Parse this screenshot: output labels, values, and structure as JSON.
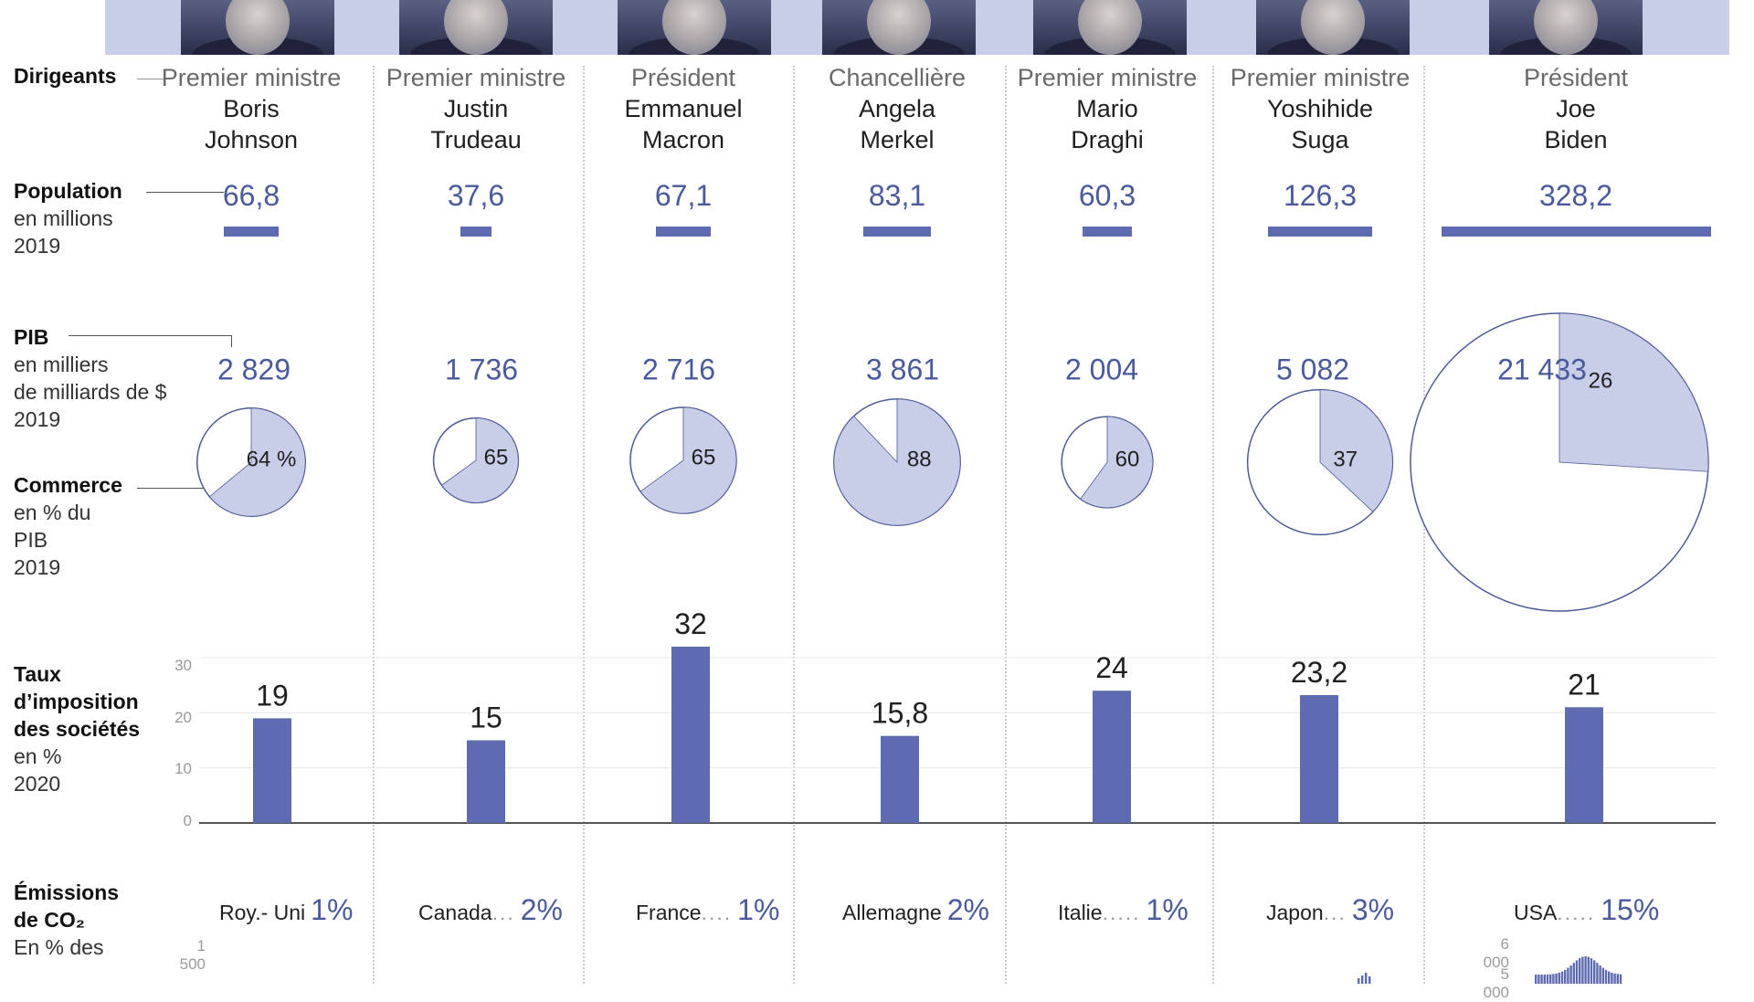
{
  "row_labels": {
    "leaders": "Dirigeants",
    "population": {
      "title": "Population",
      "lines": [
        "en millions",
        "2019"
      ]
    },
    "gdp": {
      "title": "PIB",
      "lines": [
        "en milliers",
        "de milliards de $",
        "2019"
      ]
    },
    "trade": {
      "title": "Commerce",
      "lines": [
        "en % du",
        "PIB",
        "2019"
      ]
    },
    "tax": {
      "title_lines": [
        "Taux",
        "d’imposition",
        "des sociétés"
      ],
      "lines": [
        "en %",
        "2020"
      ]
    },
    "co2": {
      "title_lines": [
        "Émissions",
        "de CO₂"
      ],
      "lines": [
        "En % des"
      ]
    }
  },
  "leaders": [
    {
      "role": "Premier ministre",
      "name": [
        "Boris",
        "Johnson"
      ]
    },
    {
      "role": "Premier ministre",
      "name": [
        "Justin",
        "Trudeau"
      ]
    },
    {
      "role": "Président",
      "name": [
        "Emmanuel",
        "Macron"
      ]
    },
    {
      "role": "Chancellière",
      "name": [
        "Angela",
        "Merkel"
      ]
    },
    {
      "role": "Premier ministre",
      "name": [
        "Mario",
        "Draghi"
      ]
    },
    {
      "role": "Premier ministre",
      "name": [
        "Yoshihide",
        "Suga"
      ]
    },
    {
      "role": "Président",
      "name": [
        "Joe",
        "Biden"
      ]
    }
  ],
  "tax_ticks": [
    "30",
    "20",
    "10",
    "0"
  ],
  "co2_ticks": {
    "left": "1 500",
    "usa_top": "6 000",
    "usa_mid": "5 000"
  },
  "colors": {
    "accent": "#5e6bb0",
    "pie_fill": "#c8cde8",
    "value_text": "#4a5a9c"
  },
  "chart_data": [
    {
      "type": "bar",
      "title": "Population",
      "ylabel": "en millions",
      "categories": [
        "Roy.- Uni",
        "Canada",
        "France",
        "Allemagne",
        "Italie",
        "Japon",
        "USA"
      ],
      "values": [
        66.8,
        37.6,
        67.1,
        83.1,
        60.3,
        126.3,
        328.2
      ],
      "value_labels": [
        "66,8",
        "37,6",
        "67,1",
        "83,1",
        "60,3",
        "126,3",
        "328,2"
      ]
    },
    {
      "type": "pie",
      "title": "PIB",
      "categories": [
        "Roy.- Uni",
        "Canada",
        "France",
        "Allemagne",
        "Italie",
        "Japon",
        "USA"
      ],
      "gdp": [
        2829,
        1736,
        2716,
        3861,
        2004,
        5082,
        21433
      ],
      "gdp_labels": [
        "2 829",
        "1 736",
        "2 716",
        "3 861",
        "2 004",
        "5 082",
        "21 433"
      ],
      "trade_pct": [
        64,
        65,
        65,
        88,
        60,
        37,
        26
      ],
      "trade_labels": [
        "64 %",
        "65",
        "65",
        "88",
        "60",
        "37",
        "26"
      ]
    },
    {
      "type": "bar",
      "title": "Taux d’imposition des sociétés",
      "ylabel": "en %",
      "categories": [
        "Roy.- Uni",
        "Canada",
        "France",
        "Allemagne",
        "Italie",
        "Japon",
        "USA"
      ],
      "values": [
        19,
        15,
        32,
        15.8,
        24,
        23.2,
        21
      ],
      "value_labels": [
        "19",
        "15",
        "32",
        "15,8",
        "24",
        "23,2",
        "21"
      ],
      "ylim": [
        0,
        30
      ]
    },
    {
      "type": "table",
      "title": "Émissions de CO₂",
      "categories": [
        "Roy.- Uni",
        "Canada",
        "France",
        "Allemagne",
        "Italie",
        "Japon",
        "USA"
      ],
      "values": [
        1,
        2,
        1,
        2,
        1,
        3,
        15
      ],
      "value_labels": [
        "1%",
        "2%",
        "1%",
        "2%",
        "1%",
        "3%",
        "15%"
      ],
      "separators": [
        "",
        "...",
        "....",
        "",
        ".....",
        "...",
        "....."
      ]
    }
  ]
}
